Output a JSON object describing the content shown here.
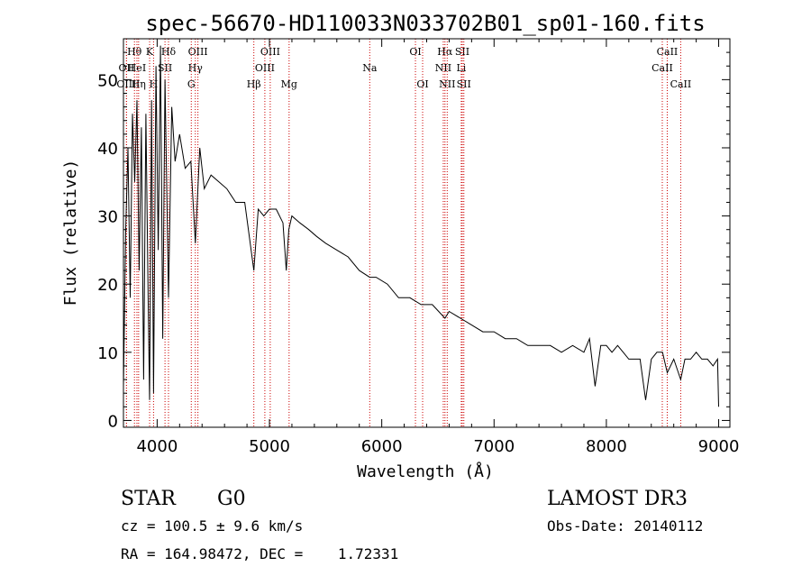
{
  "chart_data": {
    "type": "line",
    "title": "spec-56670-HD110033N033702B01_sp01-160.fits",
    "xlabel": "Wavelength (Å)",
    "ylabel": "Flux (relative)",
    "xlim": [
      3700,
      9100
    ],
    "ylim": [
      -1,
      56
    ],
    "xticks": [
      4000,
      5000,
      6000,
      7000,
      8000,
      9000
    ],
    "yticks": [
      0,
      10,
      20,
      30,
      40,
      50
    ],
    "series": [
      {
        "name": "flux",
        "x": [
          3700,
          3720,
          3740,
          3760,
          3780,
          3800,
          3820,
          3840,
          3860,
          3880,
          3900,
          3920,
          3933,
          3950,
          3968,
          3990,
          4010,
          4030,
          4050,
          4070,
          4101,
          4130,
          4160,
          4200,
          4250,
          4300,
          4340,
          4380,
          4420,
          4480,
          4550,
          4620,
          4700,
          4780,
          4861,
          4900,
          4950,
          5000,
          5060,
          5120,
          5150,
          5172,
          5200,
          5270,
          5350,
          5420,
          5500,
          5600,
          5700,
          5800,
          5893,
          5950,
          6050,
          6150,
          6250,
          6350,
          6450,
          6563,
          6600,
          6700,
          6800,
          6900,
          7000,
          7100,
          7200,
          7300,
          7400,
          7500,
          7600,
          7700,
          7800,
          7850,
          7900,
          7950,
          8000,
          8050,
          8100,
          8150,
          8200,
          8300,
          8350,
          8400,
          8450,
          8500,
          8542,
          8600,
          8662,
          8700,
          8750,
          8800,
          8850,
          8900,
          8950,
          8990,
          9000
        ],
        "y": [
          5,
          28,
          40,
          18,
          45,
          35,
          47,
          22,
          43,
          6,
          45,
          18,
          3,
          47,
          4,
          52,
          25,
          55,
          12,
          50,
          18,
          46,
          38,
          42,
          37,
          38,
          26,
          40,
          34,
          36,
          35,
          34,
          32,
          32,
          22,
          31,
          30,
          31,
          31,
          29,
          22,
          28,
          30,
          29,
          28,
          27,
          26,
          25,
          24,
          22,
          21,
          21,
          20,
          18,
          18,
          17,
          17,
          15,
          16,
          15,
          14,
          13,
          13,
          12,
          12,
          11,
          11,
          11,
          10,
          11,
          10,
          12,
          5,
          11,
          11,
          10,
          11,
          10,
          9,
          9,
          3,
          9,
          10,
          10,
          7,
          9,
          6,
          9,
          9,
          10,
          9,
          9,
          8,
          9,
          2
        ]
      }
    ],
    "lines": [
      {
        "name": "Hθ",
        "wl": 3798,
        "row": 0
      },
      {
        "name": "K",
        "wl": 3933,
        "row": 0
      },
      {
        "name": "Hδ",
        "wl": 4101,
        "row": 0
      },
      {
        "name": "OIII",
        "wl": 4363,
        "row": 0
      },
      {
        "name": "OIII",
        "wl": 5007,
        "row": 0
      },
      {
        "name": "OI",
        "wl": 6300,
        "row": 0
      },
      {
        "name": "Hα",
        "wl": 6563,
        "row": 0
      },
      {
        "name": "SII",
        "wl": 6717,
        "row": 0
      },
      {
        "name": "CaII",
        "wl": 8542,
        "row": 0
      },
      {
        "name": "OII",
        "wl": 3727,
        "row": 1
      },
      {
        "name": "HeI",
        "wl": 3820,
        "row": 1
      },
      {
        "name": "SII",
        "wl": 4070,
        "row": 1
      },
      {
        "name": "Hγ",
        "wl": 4340,
        "row": 1
      },
      {
        "name": "OIII",
        "wl": 4959,
        "row": 1
      },
      {
        "name": "NII",
        "wl": 6548,
        "row": 1
      },
      {
        "name": "Li",
        "wl": 6708,
        "row": 1
      },
      {
        "name": "CaII",
        "wl": 8498,
        "row": 1
      },
      {
        "name": "OIII",
        "wl": 3727,
        "row": 2
      },
      {
        "name": "Hη",
        "wl": 3835,
        "row": 2
      },
      {
        "name": "H",
        "wl": 3968,
        "row": 2
      },
      {
        "name": "G",
        "wl": 4304,
        "row": 2
      },
      {
        "name": "Hβ",
        "wl": 4861,
        "row": 2
      },
      {
        "name": "Mg",
        "wl": 5175,
        "row": 2
      },
      {
        "name": "Na",
        "wl": 5893,
        "row": 1
      },
      {
        "name": "OI",
        "wl": 6364,
        "row": 2
      },
      {
        "name": "NII",
        "wl": 6583,
        "row": 2
      },
      {
        "name": "SII",
        "wl": 6731,
        "row": 2
      },
      {
        "name": "CaII",
        "wl": 8662,
        "row": 2
      }
    ]
  },
  "info": {
    "class_label": "STAR",
    "subclass": "G0",
    "survey": "LAMOST DR3",
    "cz": "cz = 100.5 ± 9.6 km/s",
    "obs_date": "Obs-Date: 20140112",
    "coords": "RA = 164.98472, DEC =    1.72331"
  },
  "colors": {
    "line": "#cc0000",
    "axis": "#000000"
  }
}
